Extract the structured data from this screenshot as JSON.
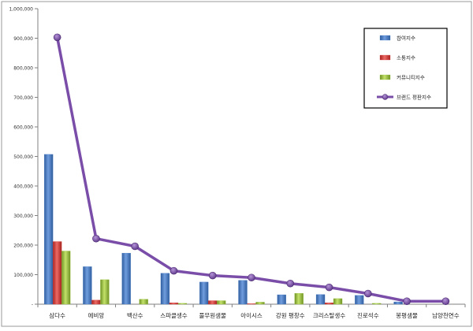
{
  "chart_data": {
    "type": "bar",
    "categories": [
      "삼다수",
      "에비앙",
      "백산수",
      "스파클생수",
      "풀무원샘물",
      "아이시스",
      "강원 평창수",
      "크리스탈생수",
      "진로석수",
      "봉평샘물",
      "남양천연수"
    ],
    "series": [
      {
        "name": "참여지수",
        "type": "bar",
        "color": "#4a7fc9",
        "values": [
          507000,
          127000,
          173000,
          105000,
          75000,
          81000,
          32000,
          33000,
          30000,
          8000,
          0
        ]
      },
      {
        "name": "소통지수",
        "type": "bar",
        "color": "#d9433f",
        "values": [
          212000,
          14000,
          0,
          5000,
          12000,
          2000,
          0,
          5000,
          0,
          0,
          0
        ]
      },
      {
        "name": "커뮤니티지수",
        "type": "bar",
        "color": "#9cc53d",
        "values": [
          180000,
          83000,
          17000,
          3000,
          12000,
          7000,
          37000,
          19000,
          3000,
          0,
          0
        ]
      },
      {
        "name": "브랜드 평판지수",
        "type": "line",
        "color": "#7a4ea8",
        "values": [
          903000,
          222000,
          196000,
          113000,
          97000,
          90000,
          70000,
          57000,
          36000,
          10000,
          10000
        ]
      }
    ],
    "ylim": [
      0,
      1000000
    ],
    "yticks": [
      0,
      100000,
      200000,
      300000,
      400000,
      500000,
      600000,
      700000,
      800000,
      900000,
      1000000
    ],
    "ytick_labels": [
      "-",
      "100,000",
      "200,000",
      "300,000",
      "400,000",
      "500,000",
      "600,000",
      "700,000",
      "800,000",
      "900,000",
      "1,000,000"
    ],
    "grid": false,
    "legend_position": "top-right"
  }
}
